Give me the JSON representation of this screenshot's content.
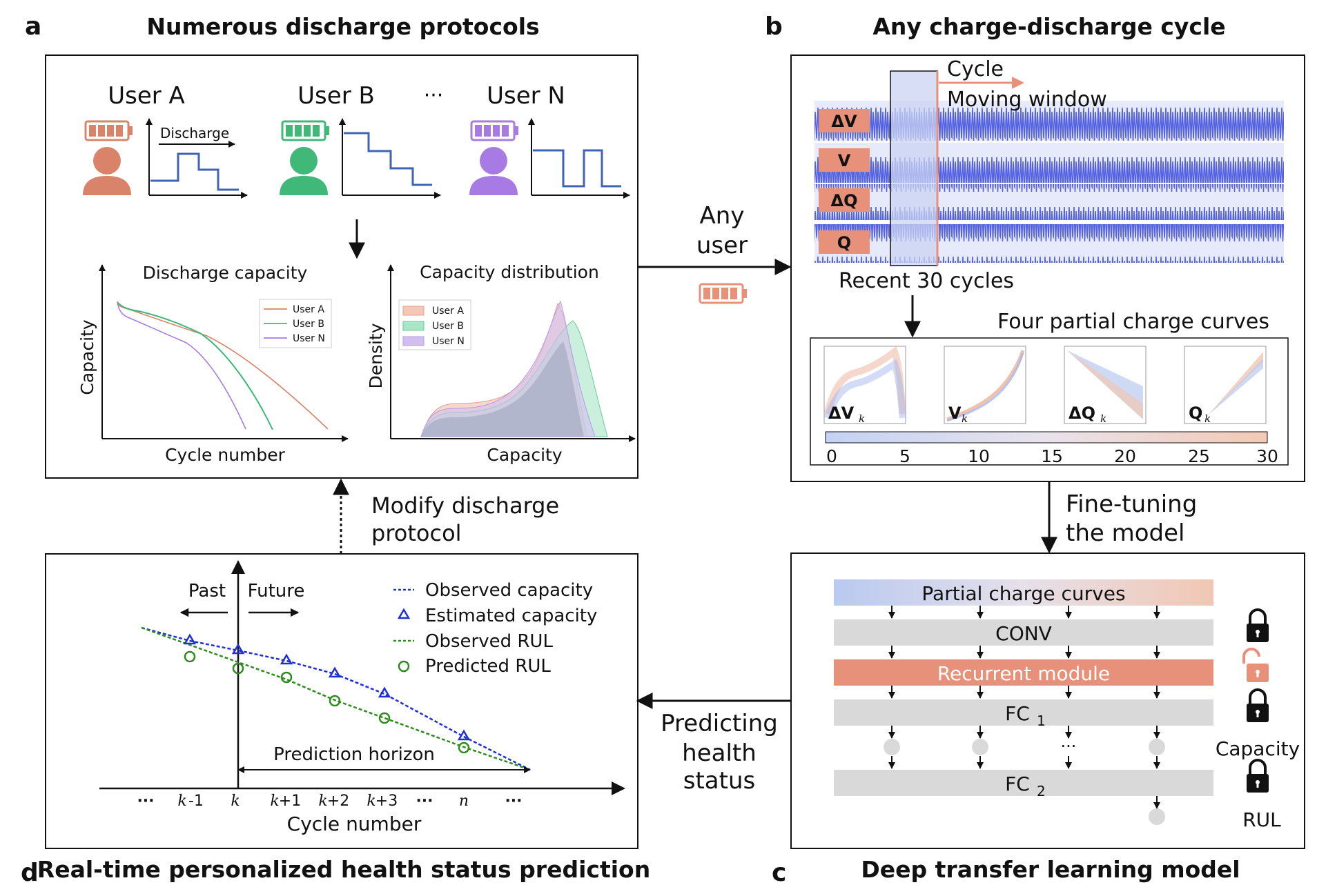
{
  "colors": {
    "userA": "#d9846a",
    "userB": "#3fb878",
    "userN": "#a77be3",
    "step_blue": "#3f63b5",
    "accent_orange": "#e8917a",
    "signal_blue": "#5563e0",
    "obs_blue": "#1f2fd6",
    "obs_green": "#2e8b1e",
    "fc_gray": "#d9d9d9"
  },
  "panels": {
    "a": {
      "letter": "a",
      "title": "Numerous discharge protocols",
      "users": [
        {
          "label": "User A",
          "color_key": "userA"
        },
        {
          "label": "User B",
          "color_key": "userB"
        },
        {
          "label": "User N",
          "color_key": "userN"
        }
      ],
      "ellipsis": "···",
      "discharge_label": "Discharge",
      "capacity_chart": {
        "title": "Discharge capacity",
        "xlabel": "Cycle number",
        "ylabel": "Capacity",
        "legend": [
          "User A",
          "User B",
          "User N"
        ]
      },
      "distribution_chart": {
        "title": "Capacity distribution",
        "xlabel": "Capacity",
        "ylabel": "Density",
        "legend": [
          "User A",
          "User B",
          "User N"
        ]
      }
    },
    "b": {
      "letter": "b",
      "title": "Any charge-discharge cycle",
      "cycle_label": "Cycle",
      "window_label": "Moving window",
      "signals": [
        "ΔV",
        "V",
        "ΔQ",
        "Q"
      ],
      "recent_label": "Recent 30 cycles",
      "curves_title": "Four partial charge curves",
      "curve_labels": [
        {
          "main": "ΔV",
          "sub": "k"
        },
        {
          "main": "V",
          "sub": "k"
        },
        {
          "main": "ΔQ",
          "sub": "k"
        },
        {
          "main": "Q",
          "sub": "k"
        }
      ],
      "colorbar_ticks": [
        "0",
        "5",
        "10",
        "15",
        "20",
        "25",
        "30"
      ]
    },
    "c": {
      "letter": "c",
      "title": "Deep transfer learning model",
      "layers": {
        "input": "Partial charge curves",
        "conv": "CONV",
        "recurrent": "Recurrent  module",
        "fc1_main": "FC",
        "fc1_sub": "1",
        "fc2_main": "FC",
        "fc2_sub": "2"
      },
      "dots": "···",
      "output_capacity": "Capacity",
      "output_rul": "RUL"
    },
    "d": {
      "letter": "d",
      "title": "Real-time personalized health status prediction",
      "past": "Past",
      "future": "Future",
      "legend": [
        "Observed capacity",
        "Estimated capacity",
        "Observed RUL",
        "Predicted RUL"
      ],
      "horizon": "Prediction horizon",
      "xlabel": "Cycle number",
      "xticks": [
        "···",
        "k",
        "-1",
        "k",
        "k",
        "+1",
        "k",
        "+2",
        "k",
        "+3",
        "···",
        "n",
        "···"
      ]
    }
  },
  "connectors": {
    "any_user_1": "Any",
    "any_user_2": "user",
    "finetune_1": "Fine-tuning",
    "finetune_2": "the model",
    "predict_1": "Predicting",
    "predict_2": "health",
    "predict_3": "status",
    "modify_1": "Modify discharge",
    "modify_2": "protocol"
  }
}
